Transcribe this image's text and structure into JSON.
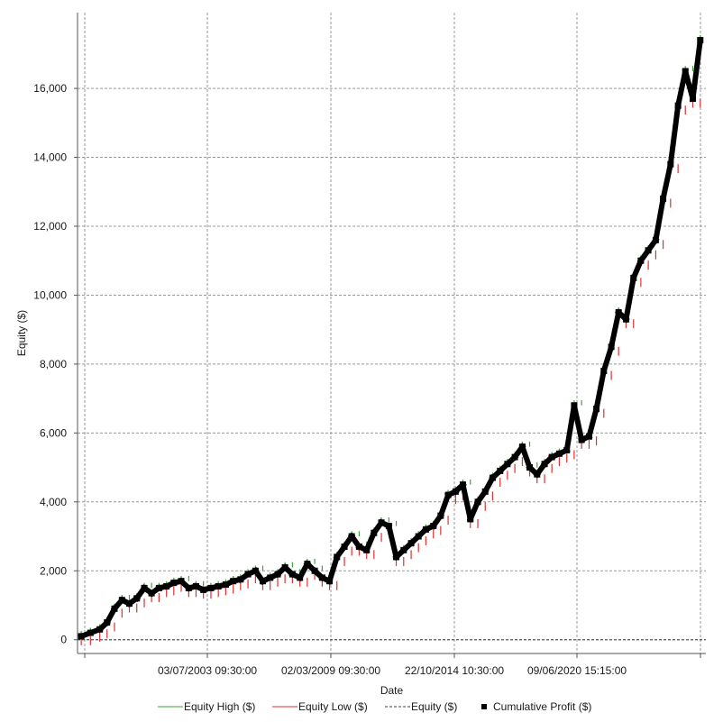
{
  "chart_data": {
    "type": "line",
    "title": "",
    "xlabel": "Date",
    "ylabel": "Equity ($)",
    "x_ticks": [
      "03/07/2003 09:30:00",
      "02/03/2009 09:30:00",
      "22/10/2014 10:30:00",
      "09/06/2020 15:15:00"
    ],
    "y_ticks": [
      "0",
      "2,000",
      "4,000",
      "6,000",
      "8,000",
      "10,000",
      "12,000",
      "14,000",
      "16,000"
    ],
    "y_tick_values": [
      0,
      2000,
      4000,
      6000,
      8000,
      10000,
      12000,
      14000,
      16000
    ],
    "ylim": [
      -400,
      18200
    ],
    "xlim": [
      "1997-11-01",
      "2026-02-01"
    ],
    "grid": true,
    "legend_position": "bottom",
    "series": [
      {
        "name": "Equity High ($)",
        "style": "line",
        "color": "#3aa63a"
      },
      {
        "name": "Equity Low ($)",
        "style": "line",
        "color": "#e03030"
      },
      {
        "name": "Equity ($)",
        "style": "dashed",
        "color": "#404040"
      },
      {
        "name": "Cumulative Profit ($)",
        "style": "marker",
        "color": "#000000",
        "x": [
          "1998-01-01",
          "1998-06-01",
          "1998-11-01",
          "1999-03-01",
          "1999-07-01",
          "1999-11-01",
          "2000-03-01",
          "2000-07-01",
          "2000-11-01",
          "2001-03-01",
          "2001-07-01",
          "2001-11-01",
          "2002-03-01",
          "2002-07-01",
          "2002-11-01",
          "2003-03-01",
          "2003-07-01",
          "2003-11-01",
          "2004-03-01",
          "2004-07-01",
          "2004-11-01",
          "2005-03-01",
          "2005-07-01",
          "2005-11-01",
          "2006-03-01",
          "2006-07-01",
          "2006-11-01",
          "2007-03-01",
          "2007-07-01",
          "2007-11-01",
          "2008-03-01",
          "2008-07-01",
          "2008-11-01",
          "2009-03-01",
          "2009-07-01",
          "2009-11-01",
          "2010-03-01",
          "2010-07-01",
          "2010-11-01",
          "2011-03-01",
          "2011-07-01",
          "2011-11-01",
          "2012-03-01",
          "2012-07-01",
          "2012-11-01",
          "2013-03-01",
          "2013-07-01",
          "2013-11-01",
          "2014-03-01",
          "2014-07-01",
          "2014-11-01",
          "2015-03-01",
          "2015-07-01",
          "2015-11-01",
          "2016-03-01",
          "2016-07-01",
          "2016-11-01",
          "2017-03-01",
          "2017-07-01",
          "2017-11-01",
          "2018-03-01",
          "2018-07-01",
          "2018-11-01",
          "2019-03-01",
          "2019-07-01",
          "2019-11-01",
          "2020-03-01",
          "2020-07-01",
          "2020-11-01",
          "2021-03-01",
          "2021-07-01",
          "2021-11-01",
          "2022-03-01",
          "2022-07-01",
          "2022-11-01",
          "2023-03-01",
          "2023-07-01",
          "2023-11-01",
          "2024-03-01",
          "2024-07-01",
          "2024-11-01",
          "2025-03-01",
          "2025-07-01",
          "2025-11-01"
        ],
        "values": [
          100,
          200,
          300,
          500,
          900,
          1150,
          1050,
          1200,
          1500,
          1350,
          1500,
          1550,
          1650,
          1700,
          1500,
          1550,
          1450,
          1500,
          1550,
          1600,
          1700,
          1750,
          1900,
          2000,
          1700,
          1800,
          1900,
          2100,
          1900,
          1800,
          2200,
          2000,
          1800,
          1700,
          2400,
          2700,
          3000,
          2700,
          2600,
          3100,
          3400,
          3300,
          2400,
          2600,
          2800,
          3000,
          3200,
          3300,
          3600,
          4200,
          4300,
          4500,
          3500,
          4000,
          4300,
          4700,
          4900,
          5100,
          5300,
          5600,
          5000,
          4800,
          5100,
          5300,
          5400,
          5500,
          6800,
          5800,
          5900,
          6700,
          7800,
          8500,
          9500,
          9300,
          10500,
          11000,
          11300,
          11600,
          12800,
          13800,
          15500,
          16500,
          15700,
          17400
        ]
      }
    ]
  }
}
